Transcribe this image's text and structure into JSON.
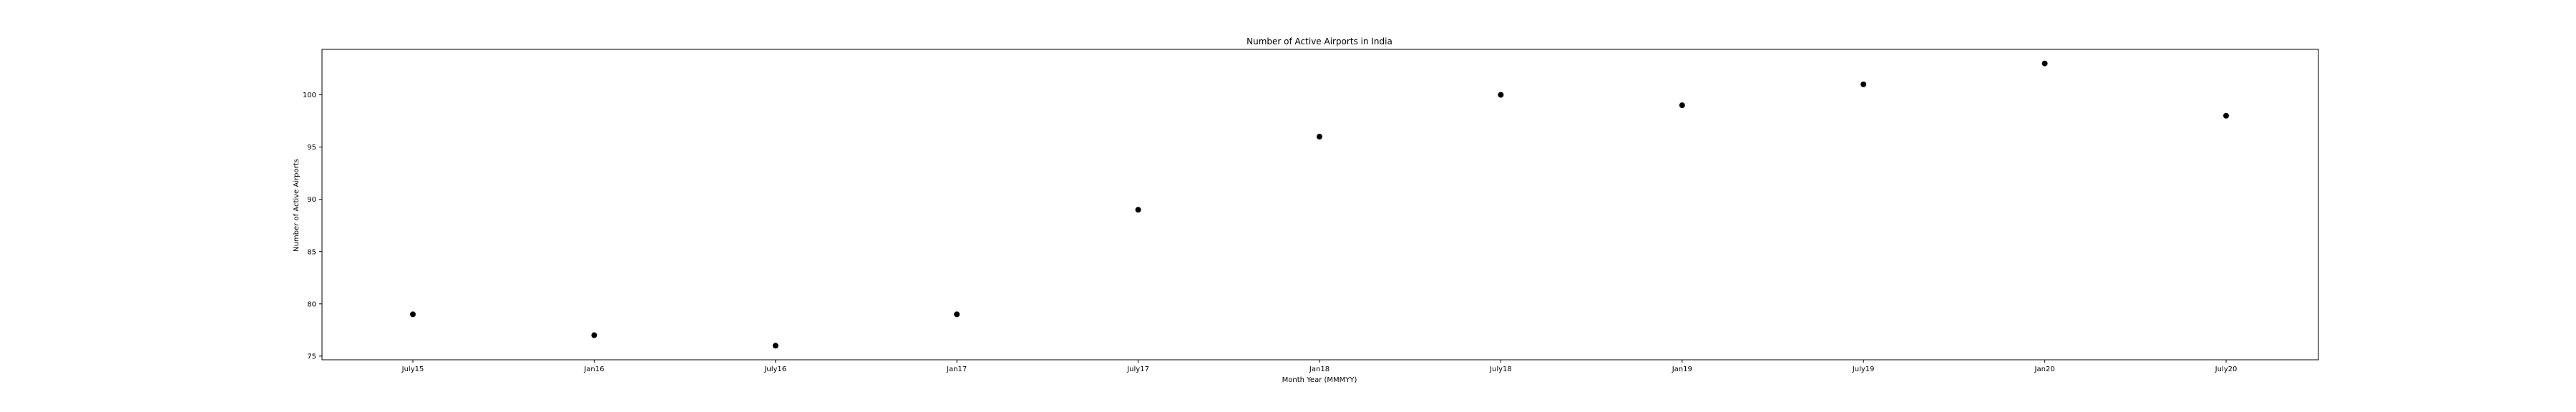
{
  "chart_data": {
    "type": "scatter",
    "title": "Number of Active Airports in India",
    "xlabel": "Month Year (MMMYY)",
    "ylabel": "Number of Active Airports",
    "categories": [
      "July15",
      "Jan16",
      "July16",
      "Jan17",
      "July17",
      "Jan18",
      "July18",
      "Jan19",
      "July19",
      "Jan20",
      "July20"
    ],
    "values": [
      79,
      77,
      76,
      79,
      89,
      96,
      100,
      99,
      101,
      103,
      98
    ],
    "yticks": [
      75,
      80,
      85,
      90,
      95,
      100
    ],
    "ylim": [
      74.65,
      104.35
    ],
    "grid": false,
    "marker_color": "#000000"
  }
}
